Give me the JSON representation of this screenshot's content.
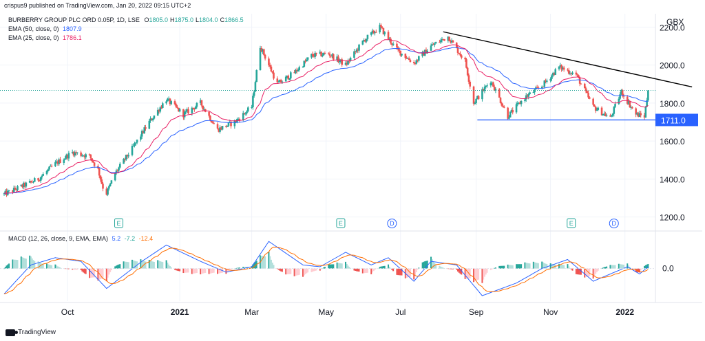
{
  "header": {
    "publisher": "crispus9 published on TradingView.com, Jan 20, 2022 09:15 UTC+2",
    "symbol": "BURBERRY GROUP PLC ORD 0.05P, 1D, LSE",
    "ohlc": [
      {
        "k": "O",
        "v": "1805.0"
      },
      {
        "k": "H",
        "v": "1875.0"
      },
      {
        "k": "L",
        "v": "1804.0"
      },
      {
        "k": "C",
        "v": "1866.5"
      }
    ],
    "ema50_label": "EMA (50, close, 0)",
    "ema50_value": "1807.9",
    "ema25_label": "EMA (25, close, 0)",
    "ema25_value": "1786.1",
    "macd_label": "MACD (12, 26, close, 9, EMA, EMA)",
    "macd_v1": "5.2",
    "macd_v2": "-7.2",
    "macd_v3": "-12.4"
  },
  "footer": {
    "logo_text": "TradingView"
  },
  "colors": {
    "up": "#26a69a",
    "down": "#ef5350",
    "ema50": "#2962ff",
    "ema25": "#e91e63",
    "macd": "#2962ff",
    "signal": "#ff6d00",
    "trendline": "#000000",
    "support": "#2962ff",
    "earnings": "#26a69a",
    "dividend": "#2962ff"
  },
  "chart_data": {
    "type": "candlestick",
    "title": "BURBERRY GROUP PLC ORD 0.05P, 1D, LSE",
    "currency_label": "GBX",
    "price_ylim": [
      1130,
      2270
    ],
    "price_ticks": [
      "2200.0",
      "2000.0",
      "1800.0",
      "1600.0",
      "1400.0",
      "1200.0"
    ],
    "price_tick_values": [
      2200,
      2000,
      1800,
      1600,
      1400,
      1200
    ],
    "x_tick_labels": [
      "Oct",
      "2021",
      "Mar",
      "May",
      "Jul",
      "Sep",
      "Nov",
      "2022"
    ],
    "x_tick_dates": [
      "2020-10-01",
      "2021-01-01",
      "2021-03-01",
      "2021-05-01",
      "2021-07-01",
      "2021-09-01",
      "2021-11-01",
      "2022-01-01"
    ],
    "date_range": [
      "2020-08-10",
      "2022-01-20"
    ],
    "price_path": [
      [
        "2020-08-10",
        1320
      ],
      [
        "2020-08-24",
        1360
      ],
      [
        "2020-09-07",
        1400
      ],
      [
        "2020-09-21",
        1480
      ],
      [
        "2020-10-05",
        1540
      ],
      [
        "2020-10-19",
        1520
      ],
      [
        "2020-10-26",
        1450
      ],
      [
        "2020-11-01",
        1310
      ],
      [
        "2020-11-09",
        1430
      ],
      [
        "2020-11-23",
        1560
      ],
      [
        "2020-12-07",
        1700
      ],
      [
        "2020-12-21",
        1820
      ],
      [
        "2021-01-04",
        1740
      ],
      [
        "2021-01-18",
        1800
      ],
      [
        "2021-02-01",
        1660
      ],
      [
        "2021-02-15",
        1700
      ],
      [
        "2021-03-01",
        1780
      ],
      [
        "2021-03-08",
        2100
      ],
      [
        "2021-03-22",
        1900
      ],
      [
        "2021-04-05",
        1960
      ],
      [
        "2021-04-19",
        2050
      ],
      [
        "2021-05-03",
        2060
      ],
      [
        "2021-05-17",
        2000
      ],
      [
        "2021-06-01",
        2130
      ],
      [
        "2021-06-14",
        2200
      ],
      [
        "2021-06-28",
        2080
      ],
      [
        "2021-07-12",
        2010
      ],
      [
        "2021-07-26",
        2100
      ],
      [
        "2021-08-09",
        2150
      ],
      [
        "2021-08-23",
        2020
      ],
      [
        "2021-08-30",
        1800
      ],
      [
        "2021-09-13",
        1920
      ],
      [
        "2021-09-27",
        1730
      ],
      [
        "2021-10-11",
        1830
      ],
      [
        "2021-10-25",
        1890
      ],
      [
        "2021-11-08",
        1990
      ],
      [
        "2021-11-22",
        1950
      ],
      [
        "2021-12-06",
        1780
      ],
      [
        "2021-12-20",
        1720
      ],
      [
        "2021-12-29",
        1860
      ],
      [
        "2022-01-10",
        1740
      ],
      [
        "2022-01-17",
        1730
      ],
      [
        "2022-01-20",
        1866.5
      ]
    ],
    "last_price": 1866.5,
    "trendline": {
      "from": [
        "2021-08-05",
        2175
      ],
      "to": [
        "2022-02-25",
        1885
      ]
    },
    "support": {
      "value": 1711,
      "label": "1711.0",
      "from": "2021-09-02"
    },
    "earnings_markers": [
      "2020-11-12",
      "2021-05-13",
      "2021-11-18"
    ],
    "dividend_markers": [
      "2021-06-24",
      "2021-12-23"
    ],
    "earnings_label": "E",
    "dividend_label": "D",
    "macd": {
      "ticks": [
        "0.0"
      ],
      "tick_values": [
        0
      ],
      "ylim": [
        -90,
        100
      ],
      "path": [
        [
          "2020-08-10",
          -70
        ],
        [
          "2020-09-01",
          10
        ],
        [
          "2020-09-21",
          30
        ],
        [
          "2020-10-12",
          20
        ],
        [
          "2020-11-02",
          -55
        ],
        [
          "2020-12-01",
          20
        ],
        [
          "2020-12-21",
          65
        ],
        [
          "2021-01-18",
          20
        ],
        [
          "2021-02-08",
          -10
        ],
        [
          "2021-03-01",
          5
        ],
        [
          "2021-03-15",
          75
        ],
        [
          "2021-04-12",
          10
        ],
        [
          "2021-04-26",
          5
        ],
        [
          "2021-05-17",
          45
        ],
        [
          "2021-06-07",
          10
        ],
        [
          "2021-06-21",
          30
        ],
        [
          "2021-07-12",
          -35
        ],
        [
          "2021-07-26",
          20
        ],
        [
          "2021-08-16",
          10
        ],
        [
          "2021-09-06",
          -75
        ],
        [
          "2021-10-04",
          -40
        ],
        [
          "2021-10-25",
          0
        ],
        [
          "2021-11-15",
          25
        ],
        [
          "2021-12-06",
          -35
        ],
        [
          "2021-12-20",
          -15
        ],
        [
          "2022-01-03",
          5
        ],
        [
          "2022-01-13",
          -15
        ],
        [
          "2022-01-20",
          5.2
        ]
      ]
    }
  }
}
